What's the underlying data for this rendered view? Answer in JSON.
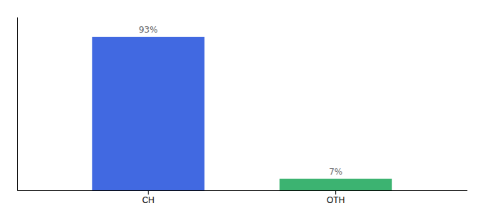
{
  "chart_data": {
    "type": "bar",
    "categories": [
      "CH",
      "OTH"
    ],
    "values": [
      93,
      7
    ],
    "value_labels": [
      "93%",
      "7%"
    ],
    "colors": [
      "#4169E1",
      "#3CB371"
    ],
    "ylim": [
      0,
      105
    ],
    "data_labels": true,
    "tick_labels": "x"
  }
}
